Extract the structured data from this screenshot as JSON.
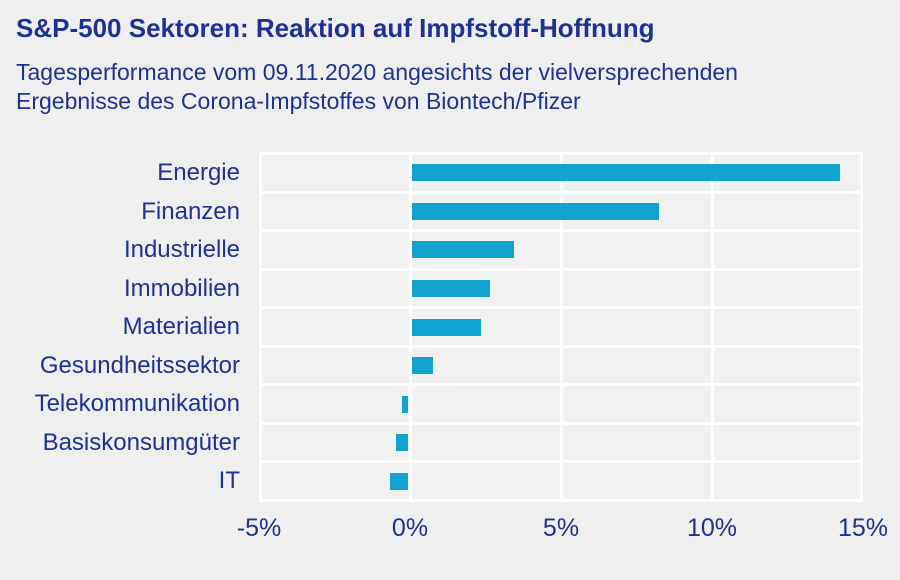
{
  "chart_data": {
    "type": "bar",
    "orientation": "horizontal",
    "title": "S&P-500 Sektoren: Reaktion auf Impfstoff-Hoffnung",
    "subtitle": "Tagesperformance vom 09.11.2020 angesichts der vielversprechenden Ergebnisse des Corona-Impfstoffes von Biontech/Pfizer",
    "categories": [
      "Energie",
      "Finanzen",
      "Industrielle",
      "Immobilien",
      "Materialien",
      "Gesundheitssektor",
      "Telekommunikation",
      "Basiskonsumgüter",
      "IT"
    ],
    "values": [
      14.2,
      8.2,
      3.4,
      2.6,
      2.3,
      0.7,
      -0.2,
      -0.4,
      -0.6
    ],
    "unit": "%",
    "xlabel": "",
    "ylabel": "",
    "xlim": [
      -5,
      15
    ],
    "x_ticks": [
      {
        "value": -5,
        "label": "-5%"
      },
      {
        "value": 0,
        "label": "0%"
      },
      {
        "value": 5,
        "label": "5%"
      },
      {
        "value": 10,
        "label": "10%"
      },
      {
        "value": 15,
        "label": "15%"
      }
    ],
    "grid": true,
    "legend": null,
    "colors": {
      "bar": "#12a4d0",
      "text": "#1d3296",
      "row_bg": "#f1f1f1",
      "gridline": "#ffffff",
      "page_bg": "#efefef"
    }
  }
}
